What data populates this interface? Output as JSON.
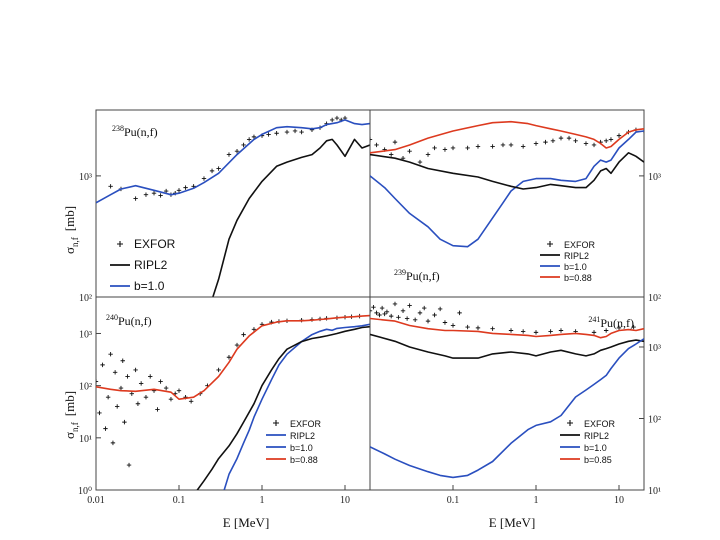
{
  "colors": {
    "exfor": "#111111",
    "ripl2": "#111111",
    "b_blue": "#2a4fbf",
    "b_red": "#dd3a1f",
    "frame": "#444444"
  },
  "axis": {
    "ylabel_top": "σ",
    "ylabel_top_sub": "n,f",
    "ylabel_top_unit": "[mb]",
    "ylabel_bottom": "σ",
    "ylabel_bottom_sub": "n,f",
    "ylabel_bottom_unit": "[mb]",
    "xlabel_left": "E  [MeV]",
    "xlabel_right": "E  [MeV]"
  },
  "chart_data": [
    {
      "id": "pu238",
      "type": "line",
      "title": "238Pu(n,f)",
      "title_mass": "238",
      "title_rest": "Pu(n,f)",
      "xscale": "log",
      "yscale": "log",
      "xlim": [
        0.01,
        20
      ],
      "ylim": [
        100,
        3500
      ],
      "yticks": [
        {
          "v": 1000,
          "label": "10³"
        },
        {
          "v": 100,
          "label": "10²"
        }
      ],
      "xticks": [],
      "tick_side": "left",
      "legend": [
        {
          "label": "EXFOR",
          "kind": "cross",
          "color": "#111111"
        },
        {
          "label": "RIPL2",
          "kind": "line",
          "color": "#111111"
        },
        {
          "label": "b=1.0",
          "kind": "line",
          "color": "#2a4fbf"
        }
      ],
      "legend_placement": "lower-left",
      "series": [
        {
          "name": "b=1.0",
          "color": "#2a4fbf",
          "x": [
            0.01,
            0.015,
            0.02,
            0.03,
            0.05,
            0.08,
            0.1,
            0.15,
            0.2,
            0.3,
            0.5,
            0.8,
            1.0,
            1.5,
            2,
            3,
            4,
            5,
            6,
            7,
            8,
            10,
            13,
            16,
            20
          ],
          "y": [
            600,
            700,
            780,
            830,
            760,
            700,
            720,
            790,
            880,
            1050,
            1500,
            2000,
            2200,
            2500,
            2550,
            2500,
            2450,
            2500,
            2650,
            2700,
            2750,
            2900,
            2700,
            2650,
            2700
          ]
        },
        {
          "name": "RIPL2",
          "color": "#111111",
          "x": [
            0.25,
            0.3,
            0.4,
            0.5,
            0.7,
            1.0,
            1.5,
            2,
            3,
            4,
            5,
            6,
            7,
            8,
            10,
            13,
            16,
            20
          ],
          "y": [
            95,
            140,
            300,
            430,
            650,
            900,
            1200,
            1300,
            1420,
            1500,
            1700,
            1950,
            2000,
            1800,
            1450,
            2000,
            1700,
            1800
          ]
        }
      ],
      "exfor": {
        "x": [
          0.015,
          0.02,
          0.03,
          0.04,
          0.05,
          0.06,
          0.07,
          0.08,
          0.09,
          0.1,
          0.12,
          0.15,
          0.2,
          0.25,
          0.3,
          0.4,
          0.5,
          0.6,
          0.7,
          0.8,
          1.0,
          1.2,
          1.5,
          2,
          2.5,
          3,
          4,
          5,
          6,
          7,
          8,
          9,
          10
        ],
        "y": [
          820,
          780,
          650,
          700,
          720,
          690,
          750,
          700,
          720,
          760,
          800,
          820,
          950,
          1100,
          1150,
          1500,
          1600,
          1800,
          2000,
          2100,
          2150,
          2200,
          2250,
          2300,
          2350,
          2300,
          2400,
          2500,
          2700,
          2900,
          3000,
          2900,
          3000
        ]
      }
    },
    {
      "id": "pu239",
      "type": "line",
      "title": "239Pu(n,f)",
      "title_mass": "239",
      "title_rest": "Pu(n,f)",
      "xscale": "log",
      "yscale": "log",
      "xlim": [
        0.01,
        20
      ],
      "ylim": [
        100,
        3500
      ],
      "yticks": [
        {
          "v": 1000,
          "label": "10³"
        },
        {
          "v": 100,
          "label": "10²"
        }
      ],
      "xticks": [],
      "tick_side": "right",
      "legend": [
        {
          "label": "EXFOR",
          "kind": "cross",
          "color": "#111111"
        },
        {
          "label": "RIPL2",
          "kind": "line",
          "color": "#111111"
        },
        {
          "label": "b=1.0",
          "kind": "line",
          "color": "#2a4fbf"
        },
        {
          "label": "b=0.88",
          "kind": "line",
          "color": "#dd3a1f"
        }
      ],
      "legend_placement": "lower-right",
      "series": [
        {
          "name": "b=0.88",
          "color": "#dd3a1f",
          "x": [
            0.01,
            0.02,
            0.03,
            0.05,
            0.1,
            0.2,
            0.3,
            0.5,
            0.8,
            1.0,
            1.5,
            2,
            3,
            4,
            5,
            6,
            7,
            8,
            10,
            13,
            16,
            20
          ],
          "y": [
            1550,
            1650,
            1800,
            2050,
            2350,
            2600,
            2750,
            2800,
            2700,
            2600,
            2450,
            2350,
            2200,
            2100,
            2000,
            1850,
            1700,
            1750,
            2000,
            2300,
            2400,
            2450
          ]
        },
        {
          "name": "b=1.0",
          "color": "#2a4fbf",
          "x": [
            0.01,
            0.015,
            0.02,
            0.03,
            0.05,
            0.07,
            0.1,
            0.15,
            0.2,
            0.3,
            0.4,
            0.5,
            0.7,
            1.0,
            1.5,
            2,
            3,
            4,
            5,
            6,
            7,
            8,
            10,
            13,
            16,
            20
          ],
          "y": [
            1000,
            800,
            650,
            490,
            380,
            300,
            265,
            260,
            300,
            450,
            600,
            750,
            900,
            950,
            950,
            920,
            900,
            950,
            1200,
            1350,
            1300,
            1350,
            1700,
            2000,
            2300,
            2350
          ]
        },
        {
          "name": "RIPL2",
          "color": "#111111",
          "x": [
            0.01,
            0.02,
            0.03,
            0.05,
            0.1,
            0.2,
            0.3,
            0.5,
            0.7,
            1.0,
            1.5,
            2,
            3,
            4,
            5,
            6,
            7,
            8,
            10,
            13,
            16,
            20
          ],
          "y": [
            1500,
            1400,
            1300,
            1150,
            1050,
            980,
            900,
            820,
            780,
            800,
            850,
            830,
            800,
            800,
            920,
            1100,
            1150,
            1050,
            1300,
            1550,
            1450,
            1300
          ]
        }
      ],
      "exfor": {
        "x": [
          0.01,
          0.012,
          0.015,
          0.018,
          0.02,
          0.025,
          0.03,
          0.04,
          0.05,
          0.06,
          0.08,
          0.1,
          0.15,
          0.2,
          0.3,
          0.4,
          0.5,
          0.7,
          1.0,
          1.3,
          1.6,
          2,
          2.5,
          3,
          4,
          5,
          6,
          7,
          8,
          10,
          13,
          16,
          20
        ],
        "y": [
          2000,
          1800,
          1650,
          1500,
          1900,
          1400,
          1600,
          1300,
          1500,
          1700,
          1650,
          1700,
          1700,
          1750,
          1750,
          1800,
          1800,
          1750,
          1850,
          1900,
          1950,
          2050,
          2050,
          1950,
          1850,
          1800,
          1900,
          1950,
          2000,
          2150,
          2300,
          2400,
          2350
        ]
      }
    },
    {
      "id": "pu240",
      "type": "line",
      "title": "240Pu(n,f)",
      "title_mass": "240",
      "title_rest": "Pu(n,f)",
      "xscale": "log",
      "yscale": "log",
      "xlim": [
        0.01,
        20
      ],
      "ylim": [
        1,
        5000
      ],
      "yticks": [
        {
          "v": 1000,
          "label": "10³"
        },
        {
          "v": 100,
          "label": "10²"
        },
        {
          "v": 10,
          "label": "10¹"
        },
        {
          "v": 1,
          "label": "10⁰"
        }
      ],
      "xticks": [
        {
          "v": 0.01,
          "label": "0.01"
        },
        {
          "v": 0.1,
          "label": "0.1"
        },
        {
          "v": 1,
          "label": "1"
        },
        {
          "v": 10,
          "label": "10"
        }
      ],
      "tick_side": "left",
      "legend": [
        {
          "label": "EXFOR",
          "kind": "cross",
          "color": "#111111"
        },
        {
          "label": "RIPL2",
          "kind": "line",
          "color": "#2a4fbf"
        },
        {
          "label": "b=1.0",
          "kind": "line",
          "color": "#2a4fbf"
        },
        {
          "label": "b=0.88",
          "kind": "line",
          "color": "#dd3a1f"
        }
      ],
      "legend_placement": "lower-right",
      "series": [
        {
          "name": "b=0.88",
          "color": "#dd3a1f",
          "x": [
            0.01,
            0.015,
            0.02,
            0.03,
            0.05,
            0.08,
            0.1,
            0.15,
            0.2,
            0.3,
            0.4,
            0.5,
            0.7,
            1.0,
            1.5,
            2,
            3,
            4,
            5,
            6,
            7,
            8,
            10,
            13,
            16,
            20
          ],
          "y": [
            95,
            85,
            80,
            78,
            85,
            75,
            55,
            60,
            80,
            150,
            280,
            500,
            900,
            1400,
            1650,
            1750,
            1750,
            1800,
            1850,
            1900,
            1950,
            2000,
            2050,
            2100,
            2150,
            2200
          ]
        },
        {
          "name": "b=1.0",
          "color": "#2a4fbf",
          "x": [
            0.35,
            0.4,
            0.5,
            0.6,
            0.7,
            0.8,
            1.0,
            1.3,
            1.6,
            2,
            3,
            4,
            5,
            6,
            7,
            8,
            10,
            13,
            16,
            20
          ],
          "y": [
            1,
            2,
            4,
            8,
            14,
            25,
            55,
            130,
            250,
            400,
            700,
            950,
            1100,
            1200,
            1150,
            1250,
            1300,
            1350,
            1400,
            1500
          ]
        },
        {
          "name": "RIPL2",
          "color": "#111111",
          "x": [
            0.15,
            0.2,
            0.25,
            0.3,
            0.4,
            0.5,
            0.6,
            0.8,
            1.0,
            1.3,
            1.6,
            2,
            3,
            4,
            5,
            6,
            7,
            8,
            10,
            13,
            16,
            20
          ],
          "y": [
            0.8,
            1.5,
            2.5,
            4,
            7,
            12,
            20,
            45,
            100,
            200,
            330,
            500,
            700,
            800,
            850,
            900,
            950,
            1000,
            1100,
            1200,
            1300,
            1350
          ]
        }
      ],
      "exfor": {
        "x": [
          0.01,
          0.011,
          0.012,
          0.013,
          0.014,
          0.015,
          0.016,
          0.017,
          0.018,
          0.02,
          0.021,
          0.022,
          0.024,
          0.025,
          0.027,
          0.03,
          0.032,
          0.035,
          0.04,
          0.045,
          0.05,
          0.055,
          0.06,
          0.07,
          0.08,
          0.09,
          0.1,
          0.12,
          0.14,
          0.18,
          0.22,
          0.3,
          0.4,
          0.5,
          0.6,
          0.8,
          1.0,
          1.3,
          1.6,
          2,
          3,
          4,
          5,
          6,
          8,
          10,
          12,
          15
        ],
        "y": [
          120,
          30,
          250,
          15,
          60,
          400,
          8,
          180,
          40,
          90,
          300,
          20,
          150,
          3,
          70,
          200,
          45,
          110,
          60,
          150,
          80,
          35,
          120,
          90,
          55,
          70,
          80,
          60,
          50,
          70,
          100,
          200,
          350,
          600,
          950,
          1200,
          1500,
          1650,
          1700,
          1750,
          1800,
          1850,
          1900,
          1950,
          2000,
          2050,
          2100,
          2150
        ]
      }
    },
    {
      "id": "pu241",
      "type": "line",
      "title": "241Pu(n,f)",
      "title_mass": "241",
      "title_rest": "Pu(n,f)",
      "xscale": "log",
      "yscale": "log",
      "xlim": [
        0.01,
        20
      ],
      "ylim": [
        10,
        5000
      ],
      "yticks": [
        {
          "v": 1000,
          "label": "10³"
        },
        {
          "v": 100,
          "label": "10²"
        },
        {
          "v": 10,
          "label": "10¹"
        }
      ],
      "xticks": [
        {
          "v": 0.1,
          "label": "0.1"
        },
        {
          "v": 1,
          "label": "1"
        },
        {
          "v": 10,
          "label": "10"
        }
      ],
      "tick_side": "right",
      "legend": [
        {
          "label": "EXFOR",
          "kind": "cross",
          "color": "#111111"
        },
        {
          "label": "RIPL2",
          "kind": "line",
          "color": "#111111"
        },
        {
          "label": "b=1.0",
          "kind": "line",
          "color": "#2a4fbf"
        },
        {
          "label": "b=0.85",
          "kind": "line",
          "color": "#dd3a1f"
        }
      ],
      "legend_placement": "lower-right",
      "series": [
        {
          "name": "b=0.85",
          "color": "#dd3a1f",
          "x": [
            0.01,
            0.02,
            0.03,
            0.05,
            0.08,
            0.1,
            0.2,
            0.3,
            0.5,
            0.8,
            1.0,
            1.5,
            2,
            3,
            4,
            5,
            6,
            7,
            8,
            10,
            13,
            16,
            20
          ],
          "y": [
            2500,
            2300,
            2000,
            1800,
            1700,
            1700,
            1650,
            1550,
            1500,
            1450,
            1400,
            1450,
            1500,
            1550,
            1500,
            1450,
            1350,
            1400,
            1550,
            1700,
            1750,
            1700,
            1800
          ]
        },
        {
          "name": "RIPL2",
          "color": "#111111",
          "x": [
            0.01,
            0.02,
            0.03,
            0.05,
            0.08,
            0.1,
            0.2,
            0.3,
            0.5,
            0.8,
            1.0,
            1.5,
            2,
            3,
            4,
            5,
            6,
            7,
            8,
            10,
            13,
            16,
            20
          ],
          "y": [
            1500,
            1200,
            1000,
            850,
            750,
            700,
            700,
            800,
            850,
            800,
            750,
            850,
            900,
            800,
            750,
            800,
            900,
            950,
            1000,
            1100,
            1200,
            1250,
            1200
          ]
        },
        {
          "name": "b=1.0",
          "color": "#2a4fbf",
          "x": [
            0.01,
            0.015,
            0.02,
            0.03,
            0.05,
            0.07,
            0.1,
            0.15,
            0.2,
            0.3,
            0.5,
            0.8,
            1.0,
            1.5,
            2,
            3,
            4,
            5,
            6,
            7,
            8,
            10,
            13,
            16,
            20
          ],
          "y": [
            40,
            32,
            27,
            22,
            18,
            16,
            15,
            16,
            19,
            25,
            45,
            70,
            80,
            90,
            110,
            200,
            250,
            300,
            350,
            400,
            500,
            700,
            950,
            1100,
            1300
          ]
        }
      ],
      "exfor": {
        "x": [
          0.01,
          0.011,
          0.012,
          0.013,
          0.014,
          0.015,
          0.016,
          0.018,
          0.02,
          0.022,
          0.025,
          0.028,
          0.03,
          0.035,
          0.04,
          0.045,
          0.05,
          0.06,
          0.07,
          0.08,
          0.1,
          0.12,
          0.15,
          0.2,
          0.3,
          0.5,
          0.7,
          1.0,
          1.5,
          2,
          3,
          5,
          7,
          10,
          15
        ],
        "y": [
          3200,
          3600,
          3000,
          2800,
          3500,
          2900,
          3100,
          2700,
          4000,
          2600,
          3200,
          2500,
          3800,
          2400,
          3000,
          3500,
          2300,
          2800,
          3400,
          2200,
          2000,
          3000,
          1900,
          1850,
          1800,
          1700,
          1650,
          1600,
          1650,
          1700,
          1650,
          1600,
          1700,
          1850,
          1900
        ]
      }
    }
  ]
}
